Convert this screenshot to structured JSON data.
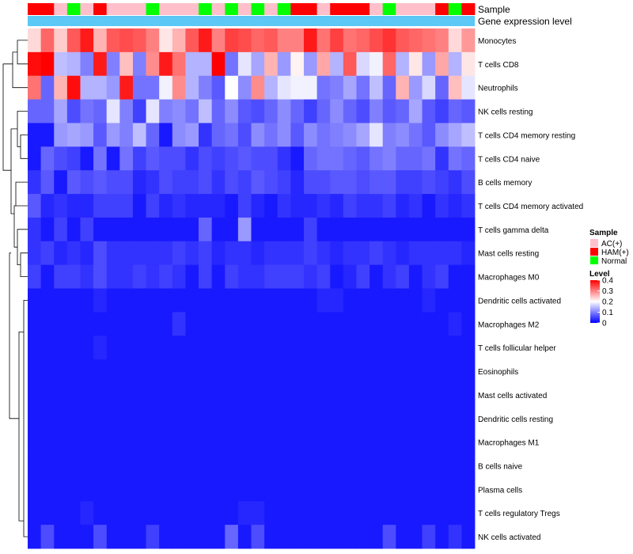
{
  "chart_data": {
    "type": "heatmap",
    "title": "",
    "annotation_tracks": [
      "Sample",
      "Gene expression level"
    ],
    "legend_sample": {
      "title": "Sample",
      "items": [
        {
          "label": "AC(+)",
          "color": "#ffc0cb"
        },
        {
          "label": "HAM(+)",
          "color": "#ff0000"
        },
        {
          "label": "Normal",
          "color": "#00ff00"
        }
      ]
    },
    "legend_level": {
      "title": "Level",
      "ticks": [
        "0.4",
        "0.3",
        "0.2",
        "0.1",
        "0"
      ],
      "tick_values": [
        0.4,
        0.3,
        0.2,
        0.1,
        0
      ],
      "range": [
        0,
        0.4
      ],
      "colors": {
        "low": "#0000ff",
        "mid": "#ffffff",
        "high": "#ff0000"
      }
    },
    "expression_bar_color": "#5bc8f5",
    "sample_groups": [
      "HAM(+)",
      "HAM(+)",
      "AC(+)",
      "Normal",
      "AC(+)",
      "HAM(+)",
      "AC(+)",
      "AC(+)",
      "AC(+)",
      "Normal",
      "AC(+)",
      "AC(+)",
      "AC(+)",
      "Normal",
      "AC(+)",
      "Normal",
      "AC(+)",
      "Normal",
      "AC(+)",
      "Normal",
      "HAM(+)",
      "HAM(+)",
      "AC(+)",
      "HAM(+)",
      "HAM(+)",
      "HAM(+)",
      "AC(+)",
      "Normal",
      "AC(+)",
      "AC(+)",
      "AC(+)",
      "HAM(+)",
      "Normal",
      "HAM(+)"
    ],
    "rows": [
      "Monocytes",
      "T cells CD8",
      "Neutrophils",
      "NK cells resting",
      "T cells CD4 memory resting",
      "T cells CD4 naive",
      "B cells memory",
      "T cells CD4 memory activated",
      "T cells gamma delta",
      "Mast cells resting",
      "Macrophages M0",
      "Dendritic cells activated",
      "Macrophages M2",
      "T cells follicular helper",
      "Eosinophils",
      "Mast cells activated",
      "Dendritic cells resting",
      "Macrophages M1",
      "B cells naive",
      "Plasma cells",
      "T cells regulatory  Tregs",
      "NK cells activated"
    ],
    "values": [
      [
        0.23,
        0.32,
        0.24,
        0.33,
        0.38,
        0.26,
        0.33,
        0.34,
        0.33,
        0.3,
        0.22,
        0.26,
        0.33,
        0.38,
        0.3,
        0.35,
        0.34,
        0.32,
        0.33,
        0.3,
        0.3,
        0.38,
        0.31,
        0.35,
        0.31,
        0.32,
        0.34,
        0.36,
        0.33,
        0.32,
        0.31,
        0.3,
        0.23,
        0.28
      ],
      [
        0.39,
        0.4,
        0.15,
        0.14,
        0.1,
        0.38,
        0.1,
        0.25,
        0.1,
        0.29,
        0.38,
        0.31,
        0.14,
        0.14,
        0.4,
        0.09,
        0.18,
        0.13,
        0.26,
        0.12,
        0.21,
        0.12,
        0.27,
        0.14,
        0.33,
        0.17,
        0.19,
        0.32,
        0.14,
        0.22,
        0.12,
        0.27,
        0.14,
        0.22
      ],
      [
        0.31,
        0.08,
        0.26,
        0.39,
        0.14,
        0.14,
        0.12,
        0.38,
        0.09,
        0.09,
        0.19,
        0.29,
        0.14,
        0.1,
        0.07,
        0.2,
        0.11,
        0.29,
        0.14,
        0.18,
        0.19,
        0.19,
        0.09,
        0.1,
        0.13,
        0.09,
        0.15,
        0.08,
        0.26,
        0.12,
        0.17,
        0.08,
        0.25,
        0.18
      ],
      [
        0.08,
        0.08,
        0.13,
        0.06,
        0.09,
        0.08,
        0.18,
        0.1,
        0.05,
        0.18,
        0.1,
        0.11,
        0.09,
        0.15,
        0.08,
        0.11,
        0.07,
        0.06,
        0.08,
        0.11,
        0.08,
        0.05,
        0.08,
        0.11,
        0.08,
        0.06,
        0.1,
        0.07,
        0.08,
        0.13,
        0.07,
        0.05,
        0.08,
        0.07
      ],
      [
        0.02,
        0.02,
        0.12,
        0.13,
        0.12,
        0.07,
        0.12,
        0.1,
        0.15,
        0.08,
        0.02,
        0.11,
        0.12,
        0.04,
        0.08,
        0.09,
        0.06,
        0.11,
        0.09,
        0.11,
        0.07,
        0.11,
        0.09,
        0.1,
        0.11,
        0.13,
        0.18,
        0.1,
        0.11,
        0.09,
        0.07,
        0.11,
        0.13,
        0.15
      ],
      [
        0.02,
        0.08,
        0.06,
        0.05,
        0.02,
        0.09,
        0.02,
        0.09,
        0.05,
        0.07,
        0.06,
        0.06,
        0.04,
        0.06,
        0.05,
        0.06,
        0.07,
        0.06,
        0.06,
        0.04,
        0.02,
        0.08,
        0.09,
        0.09,
        0.08,
        0.07,
        0.09,
        0.1,
        0.08,
        0.08,
        0.09,
        0.04,
        0.09,
        0.08
      ],
      [
        0.04,
        0.07,
        0.02,
        0.07,
        0.06,
        0.07,
        0.06,
        0.06,
        0.03,
        0.04,
        0.06,
        0.05,
        0.05,
        0.06,
        0.04,
        0.06,
        0.05,
        0.07,
        0.06,
        0.05,
        0.03,
        0.06,
        0.06,
        0.07,
        0.07,
        0.06,
        0.07,
        0.07,
        0.05,
        0.05,
        0.06,
        0.05,
        0.04,
        0.06
      ],
      [
        0.07,
        0.03,
        0.04,
        0.03,
        0.03,
        0.05,
        0.05,
        0.05,
        0.02,
        0.05,
        0.03,
        0.04,
        0.03,
        0.03,
        0.03,
        0.02,
        0.05,
        0.03,
        0.02,
        0.04,
        0.03,
        0.03,
        0.04,
        0.03,
        0.05,
        0.04,
        0.04,
        0.05,
        0.03,
        0.04,
        0.02,
        0.04,
        0.03,
        0.04
      ],
      [
        0.04,
        0.02,
        0.05,
        0.02,
        0.05,
        0.02,
        0.02,
        0.02,
        0.02,
        0.02,
        0.02,
        0.02,
        0.02,
        0.08,
        0.02,
        0.02,
        0.12,
        0.02,
        0.02,
        0.02,
        0.02,
        0.05,
        0.02,
        0.02,
        0.02,
        0.02,
        0.02,
        0.02,
        0.02,
        0.02,
        0.02,
        0.02,
        0.02,
        0.02
      ],
      [
        0.04,
        0.05,
        0.03,
        0.04,
        0.03,
        0.06,
        0.04,
        0.04,
        0.04,
        0.04,
        0.04,
        0.05,
        0.04,
        0.05,
        0.03,
        0.04,
        0.04,
        0.03,
        0.04,
        0.04,
        0.04,
        0.05,
        0.04,
        0.03,
        0.04,
        0.04,
        0.05,
        0.04,
        0.03,
        0.04,
        0.04,
        0.04,
        0.04,
        0.03
      ],
      [
        0.05,
        0.02,
        0.05,
        0.05,
        0.04,
        0.06,
        0.04,
        0.04,
        0.05,
        0.04,
        0.05,
        0.04,
        0.02,
        0.05,
        0.02,
        0.05,
        0.04,
        0.04,
        0.05,
        0.05,
        0.05,
        0.04,
        0.05,
        0.02,
        0.03,
        0.05,
        0.02,
        0.04,
        0.05,
        0.02,
        0.04,
        0.05,
        0.02,
        0.02
      ],
      [
        0.02,
        0.02,
        0.02,
        0.02,
        0.02,
        0.03,
        0.02,
        0.02,
        0.02,
        0.02,
        0.02,
        0.02,
        0.02,
        0.02,
        0.02,
        0.02,
        0.02,
        0.02,
        0.02,
        0.02,
        0.02,
        0.02,
        0.03,
        0.03,
        0.02,
        0.02,
        0.02,
        0.02,
        0.02,
        0.02,
        0.03,
        0.02,
        0.02,
        0.02
      ],
      [
        0.02,
        0.02,
        0.02,
        0.02,
        0.02,
        0.02,
        0.02,
        0.02,
        0.02,
        0.02,
        0.02,
        0.04,
        0.02,
        0.02,
        0.02,
        0.02,
        0.02,
        0.02,
        0.02,
        0.02,
        0.02,
        0.02,
        0.02,
        0.02,
        0.02,
        0.02,
        0.02,
        0.02,
        0.02,
        0.02,
        0.02,
        0.02,
        0.03,
        0.02
      ],
      [
        0.02,
        0.02,
        0.02,
        0.02,
        0.02,
        0.03,
        0.02,
        0.02,
        0.02,
        0.02,
        0.02,
        0.02,
        0.02,
        0.02,
        0.02,
        0.02,
        0.02,
        0.02,
        0.02,
        0.02,
        0.02,
        0.02,
        0.02,
        0.02,
        0.02,
        0.02,
        0.02,
        0.02,
        0.02,
        0.02,
        0.02,
        0.02,
        0.02,
        0.02
      ],
      [
        0.02,
        0.02,
        0.02,
        0.02,
        0.02,
        0.02,
        0.02,
        0.02,
        0.02,
        0.02,
        0.02,
        0.02,
        0.02,
        0.02,
        0.02,
        0.02,
        0.02,
        0.02,
        0.02,
        0.02,
        0.02,
        0.02,
        0.02,
        0.02,
        0.02,
        0.02,
        0.02,
        0.02,
        0.02,
        0.02,
        0.02,
        0.02,
        0.02,
        0.02
      ],
      [
        0.02,
        0.02,
        0.02,
        0.02,
        0.02,
        0.02,
        0.02,
        0.02,
        0.02,
        0.02,
        0.02,
        0.02,
        0.02,
        0.02,
        0.02,
        0.02,
        0.02,
        0.02,
        0.02,
        0.02,
        0.02,
        0.02,
        0.02,
        0.02,
        0.02,
        0.02,
        0.02,
        0.02,
        0.02,
        0.02,
        0.02,
        0.02,
        0.02,
        0.02
      ],
      [
        0.02,
        0.02,
        0.02,
        0.02,
        0.02,
        0.02,
        0.02,
        0.02,
        0.02,
        0.02,
        0.02,
        0.02,
        0.02,
        0.02,
        0.02,
        0.02,
        0.02,
        0.02,
        0.02,
        0.02,
        0.02,
        0.02,
        0.02,
        0.02,
        0.02,
        0.02,
        0.02,
        0.02,
        0.02,
        0.02,
        0.02,
        0.02,
        0.02,
        0.02
      ],
      [
        0.02,
        0.02,
        0.02,
        0.02,
        0.02,
        0.02,
        0.02,
        0.02,
        0.02,
        0.02,
        0.02,
        0.02,
        0.02,
        0.02,
        0.02,
        0.02,
        0.02,
        0.02,
        0.02,
        0.02,
        0.02,
        0.02,
        0.02,
        0.02,
        0.02,
        0.02,
        0.02,
        0.02,
        0.02,
        0.02,
        0.02,
        0.02,
        0.02,
        0.02
      ],
      [
        0.02,
        0.02,
        0.02,
        0.02,
        0.02,
        0.02,
        0.02,
        0.02,
        0.02,
        0.02,
        0.02,
        0.02,
        0.02,
        0.02,
        0.02,
        0.02,
        0.02,
        0.02,
        0.02,
        0.02,
        0.02,
        0.02,
        0.02,
        0.02,
        0.02,
        0.02,
        0.02,
        0.02,
        0.02,
        0.02,
        0.02,
        0.02,
        0.02,
        0.02
      ],
      [
        0.02,
        0.02,
        0.02,
        0.02,
        0.02,
        0.02,
        0.02,
        0.02,
        0.02,
        0.02,
        0.02,
        0.02,
        0.02,
        0.02,
        0.02,
        0.02,
        0.02,
        0.02,
        0.02,
        0.02,
        0.02,
        0.02,
        0.02,
        0.02,
        0.02,
        0.02,
        0.02,
        0.02,
        0.02,
        0.02,
        0.02,
        0.02,
        0.02,
        0.02
      ],
      [
        0.02,
        0.02,
        0.02,
        0.02,
        0.03,
        0.02,
        0.02,
        0.02,
        0.02,
        0.02,
        0.02,
        0.02,
        0.02,
        0.02,
        0.02,
        0.02,
        0.03,
        0.03,
        0.02,
        0.02,
        0.02,
        0.02,
        0.02,
        0.02,
        0.02,
        0.02,
        0.02,
        0.02,
        0.02,
        0.02,
        0.02,
        0.02,
        0.02,
        0.02
      ],
      [
        0.02,
        0.06,
        0.02,
        0.02,
        0.02,
        0.06,
        0.02,
        0.02,
        0.02,
        0.05,
        0.02,
        0.02,
        0.02,
        0.02,
        0.02,
        0.08,
        0.02,
        0.06,
        0.02,
        0.02,
        0.02,
        0.02,
        0.02,
        0.02,
        0.02,
        0.02,
        0.02,
        0.06,
        0.02,
        0.02,
        0.05,
        0.02,
        0.04,
        0.02
      ]
    ]
  }
}
